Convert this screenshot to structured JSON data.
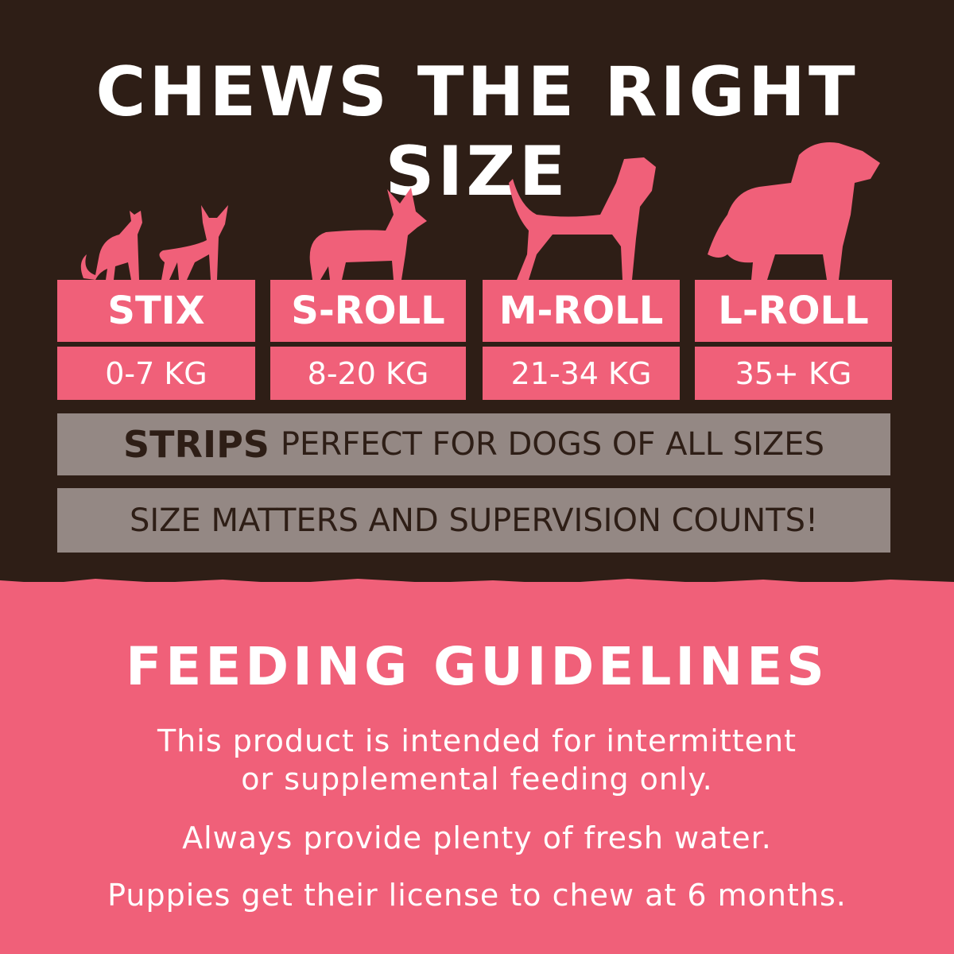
{
  "header": {
    "title": "CHEWS THE RIGHT SIZE"
  },
  "sizes": [
    {
      "name": "STIX",
      "weight": "0-7 KG",
      "icon": "cat-and-small-dog-silhouette-icon"
    },
    {
      "name": "S-ROLL",
      "weight": "8-20 KG",
      "icon": "corgi-silhouette-icon"
    },
    {
      "name": "M-ROLL",
      "weight": "21-34 KG",
      "icon": "medium-dog-silhouette-icon"
    },
    {
      "name": "L-ROLL",
      "weight": "35+ KG",
      "icon": "large-dog-silhouette-icon"
    }
  ],
  "strips": {
    "bold": "STRIPS",
    "text": "PERFECT FOR DOGS OF ALL SIZES"
  },
  "notice": "SIZE MATTERS AND SUPERVISION COUNTS!",
  "feeding": {
    "title": "FEEDING GUIDELINES",
    "line1": "This product is intended for intermittent",
    "line2": "or supplemental feeding only.",
    "line3": "Always provide plenty of fresh water.",
    "line4": "Puppies get their license to chew at 6 months."
  },
  "colors": {
    "brown": "#2e1e16",
    "pink": "#f06079",
    "gray": "#948884",
    "white": "#ffffff"
  }
}
